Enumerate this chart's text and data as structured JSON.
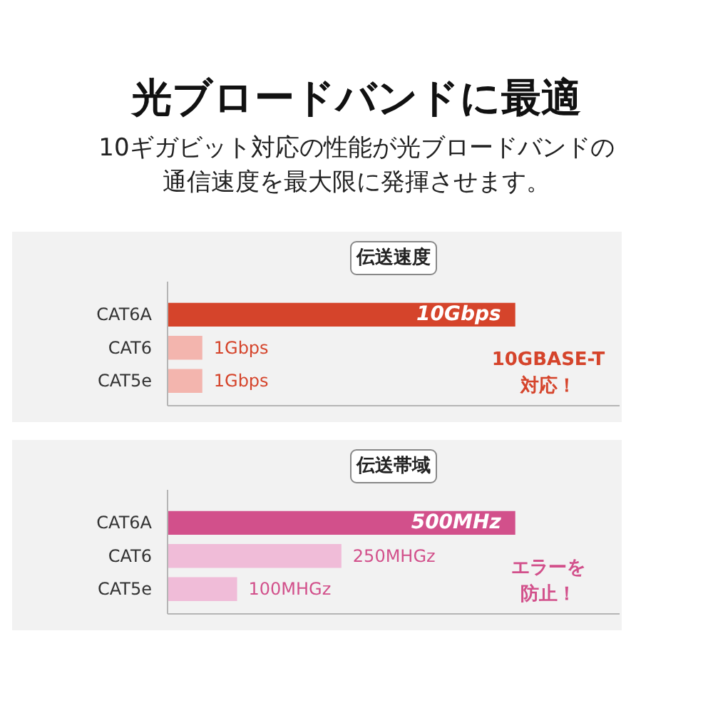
{
  "chart_data": [
    {
      "type": "other",
      "title": "光ブロードバンドに最適",
      "subtitle": "10ギガビット対応の性能が光ブロードバンドの通信速度を最大限に発揮させます。"
    },
    {
      "type": "bar",
      "orientation": "horizontal",
      "title": "伝送速度",
      "categories": [
        "CAT6A",
        "CAT6",
        "CAT5e"
      ],
      "values": [
        10,
        1,
        1
      ],
      "colors": [
        "#d5442b",
        "#f3b5ae",
        "#f3b5ae"
      ],
      "value_labels": [
        "10Gbps",
        "1Gbps",
        "1Gbps"
      ],
      "tick_labels": "y",
      "annotations": [
        "10GBASE-T対応！"
      ]
    },
    {
      "type": "bar",
      "orientation": "horizontal",
      "title": "伝送帯域",
      "categories": [
        "CAT6A",
        "CAT6",
        "CAT5e"
      ],
      "values": [
        500,
        250,
        100
      ],
      "colors": [
        "#d2508b",
        "#f0bcd8",
        "#f0bcd8"
      ],
      "value_labels": [
        "500MHz",
        "250MHGz",
        "100MHGz"
      ],
      "tick_labels": "y",
      "annotations": [
        "エラーを防止！"
      ]
    }
  ]
}
